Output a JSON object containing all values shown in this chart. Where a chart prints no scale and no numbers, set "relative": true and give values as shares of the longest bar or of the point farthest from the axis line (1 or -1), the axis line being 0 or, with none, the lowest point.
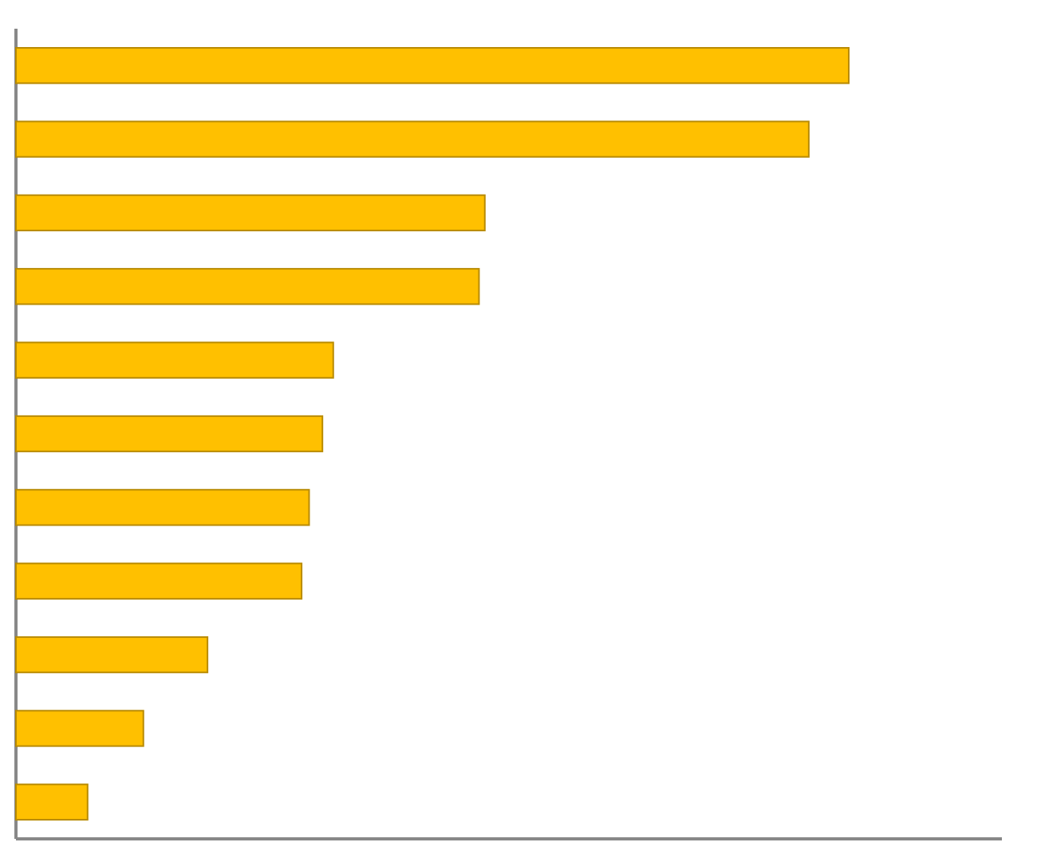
{
  "chart_data": {
    "type": "bar",
    "orientation": "horizontal",
    "relative": true,
    "color": "#ffc000",
    "categories": [
      null,
      null,
      null,
      null,
      null,
      null,
      null,
      null,
      null,
      null,
      null
    ],
    "values": [
      1,
      0.952,
      0.563,
      0.556,
      0.381,
      0.368,
      0.352,
      0.343,
      0.23,
      0.153,
      0.086
    ]
  }
}
